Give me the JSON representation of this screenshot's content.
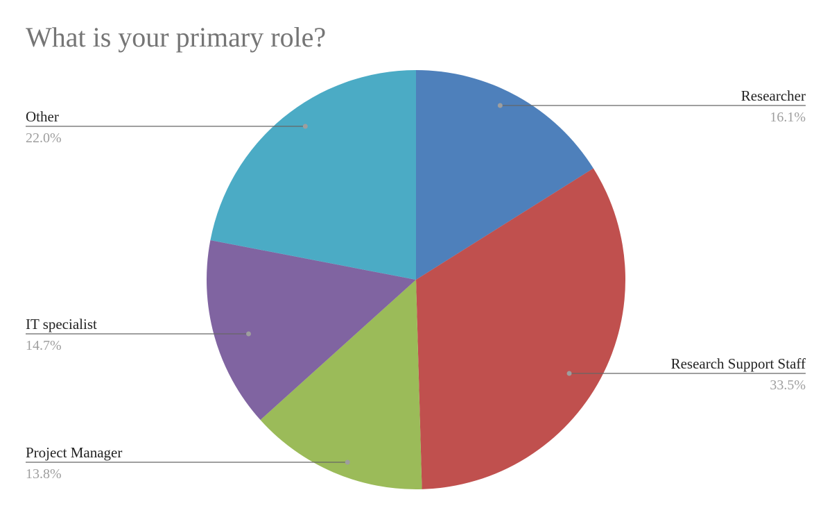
{
  "chart_data": {
    "type": "pie",
    "title": "What is your primary role?",
    "slices": [
      {
        "label": "Researcher",
        "percent": "16.1%",
        "value": 16.1,
        "color": "#4e80bb",
        "side": "right"
      },
      {
        "label": "Research Support Staff",
        "percent": "33.5%",
        "value": 33.5,
        "color": "#c0504e",
        "side": "right"
      },
      {
        "label": "Project Manager",
        "percent": "13.8%",
        "value": 13.8,
        "color": "#9bbb59",
        "side": "left"
      },
      {
        "label": "IT specialist",
        "percent": "14.7%",
        "value": 14.7,
        "color": "#8064a1",
        "side": "left"
      },
      {
        "label": "Other",
        "percent": "22.0%",
        "value": 22.0,
        "color": "#4babc5",
        "side": "left"
      }
    ],
    "start_angle": "12 o'clock",
    "direction": "clockwise",
    "legend": "none"
  }
}
